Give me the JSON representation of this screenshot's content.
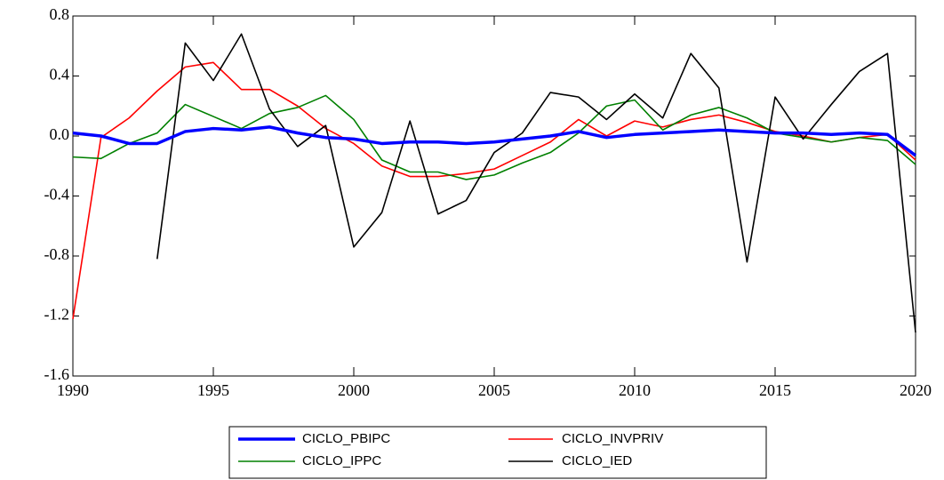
{
  "chart_data": {
    "type": "line",
    "x": [
      1990,
      1991,
      1992,
      1993,
      1994,
      1995,
      1996,
      1997,
      1998,
      1999,
      2000,
      2001,
      2002,
      2003,
      2004,
      2005,
      2006,
      2007,
      2008,
      2009,
      2010,
      2011,
      2012,
      2013,
      2014,
      2015,
      2016,
      2017,
      2018,
      2019,
      2020
    ],
    "xlim": [
      1990,
      2020
    ],
    "xticks": [
      1990,
      1995,
      2000,
      2005,
      2010,
      2015,
      2020
    ],
    "ylim": [
      -1.6,
      0.8
    ],
    "yticks": [
      -1.6,
      -1.2,
      -0.8,
      -0.4,
      {
        "value": 0,
        "label": "0.0"
      },
      0.4,
      0.8
    ],
    "series": [
      {
        "name": "CICLO_PBIPC",
        "color": "#0000ff",
        "values": [
          0.02,
          0.0,
          -0.05,
          -0.05,
          0.03,
          0.05,
          0.04,
          0.06,
          0.02,
          -0.01,
          -0.02,
          -0.05,
          -0.04,
          -0.04,
          -0.05,
          -0.04,
          -0.02,
          0.0,
          0.03,
          -0.01,
          0.01,
          0.02,
          0.03,
          0.04,
          0.03,
          0.02,
          0.02,
          0.01,
          0.02,
          0.01,
          -0.13
        ]
      },
      {
        "name": "CICLO_INVPRIV",
        "color": "#ff0000",
        "values": [
          -1.22,
          -0.01,
          0.12,
          0.3,
          0.46,
          0.49,
          0.31,
          0.31,
          0.2,
          0.05,
          -0.05,
          -0.2,
          -0.27,
          -0.27,
          -0.25,
          -0.22,
          -0.13,
          -0.04,
          0.11,
          0.0,
          0.1,
          0.06,
          0.11,
          0.14,
          0.09,
          0.03,
          0.0,
          -0.04,
          -0.01,
          0.01,
          -0.16
        ]
      },
      {
        "name": "CICLO_IPPC",
        "color": "#008000",
        "values": [
          -0.14,
          -0.15,
          -0.05,
          0.02,
          0.21,
          0.13,
          0.05,
          0.15,
          0.19,
          0.27,
          0.11,
          -0.16,
          -0.24,
          -0.24,
          -0.29,
          -0.26,
          -0.18,
          -0.11,
          0.02,
          0.2,
          0.24,
          0.04,
          0.14,
          0.19,
          0.12,
          0.02,
          -0.01,
          -0.04,
          -0.01,
          -0.03,
          -0.19
        ]
      },
      {
        "name": "CICLO_IED",
        "color": "#000000",
        "values": [
          null,
          null,
          null,
          -0.82,
          0.62,
          0.37,
          0.68,
          0.18,
          -0.07,
          0.07,
          -0.74,
          -0.51,
          0.1,
          -0.52,
          -0.43,
          -0.11,
          0.02,
          0.29,
          0.26,
          0.11,
          0.28,
          0.12,
          0.55,
          0.32,
          -0.84,
          0.26,
          -0.02,
          0.21,
          0.43,
          0.55,
          -1.31
        ]
      }
    ]
  }
}
